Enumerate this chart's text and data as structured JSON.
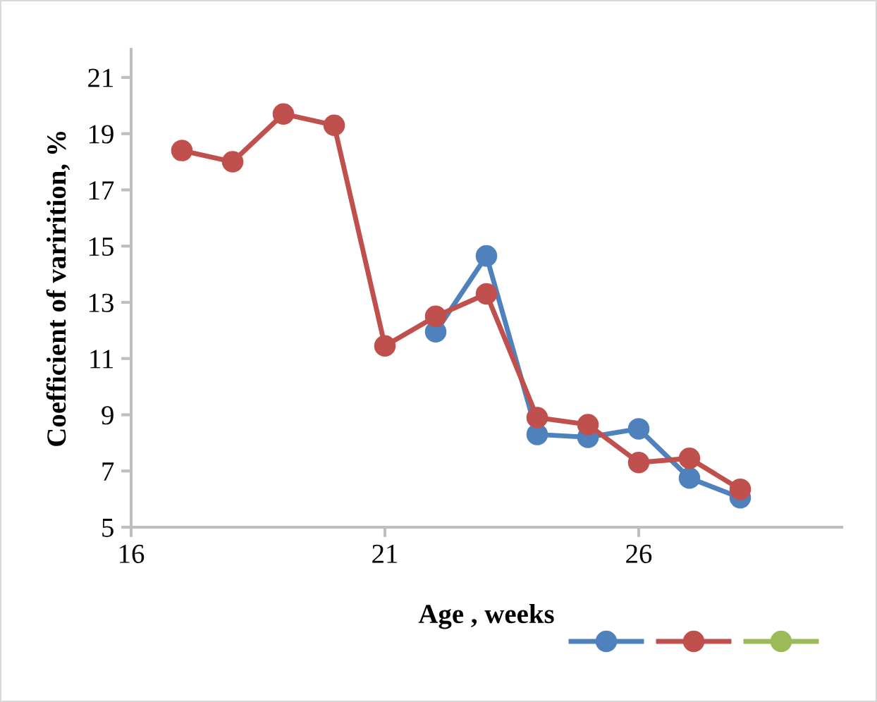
{
  "chart_data": {
    "type": "line",
    "xlabel": "Age , weeks",
    "ylabel": "Coefficient of varirition, %",
    "x": [
      17,
      18,
      19,
      20,
      21,
      22,
      23,
      24,
      25,
      26,
      27,
      28
    ],
    "series": [
      {
        "color": "#4f81bd",
        "values": [
          null,
          null,
          null,
          null,
          null,
          11.95,
          14.65,
          8.3,
          8.2,
          8.5,
          6.75,
          6.05
        ]
      },
      {
        "color": "#c0504d",
        "values": [
          18.4,
          18.0,
          19.7,
          19.3,
          11.45,
          12.5,
          13.3,
          8.9,
          8.65,
          7.3,
          7.45,
          6.35
        ]
      },
      {
        "color": "#9bbb59",
        "values": [
          null,
          null,
          null,
          null,
          null,
          null,
          null,
          null,
          null,
          null,
          null,
          null
        ]
      }
    ],
    "xlim": [
      16,
      30
    ],
    "ylim": [
      5,
      22
    ],
    "xticks": [
      16,
      21,
      26
    ],
    "yticks": [
      5,
      7,
      9,
      11,
      13,
      15,
      17,
      19,
      21
    ],
    "marker": "circle",
    "line_style": "solid",
    "grid": false
  }
}
